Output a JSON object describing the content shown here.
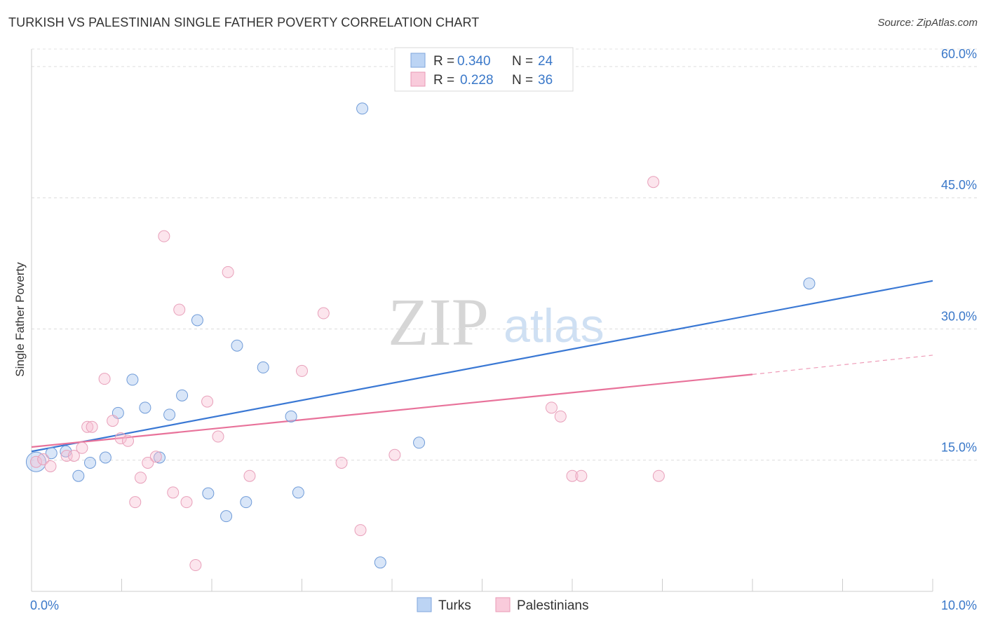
{
  "title": "TURKISH VS PALESTINIAN SINGLE FATHER POVERTY CORRELATION CHART",
  "source": "Source: ZipAtlas.com",
  "watermark": {
    "zip": "ZIP",
    "atlas": "atlas"
  },
  "colors": {
    "turks": "#3a78d4",
    "palestinians": "#e8729a",
    "tick_label": "#3a78c9"
  },
  "legend": {
    "turks": {
      "r_label": "R =",
      "r_value": "0.340",
      "n_label": "N =",
      "n_value": "24"
    },
    "palestinians": {
      "r_label": "R =",
      "r_value": "0.228",
      "n_label": "N =",
      "n_value": "36"
    }
  },
  "chart_data": {
    "type": "scatter",
    "title": "TURKISH VS PALESTINIAN SINGLE FATHER POVERTY CORRELATION CHART",
    "xlabel": "",
    "ylabel": "Single Father Poverty",
    "xlim": [
      0,
      10
    ],
    "ylim": [
      0,
      62
    ],
    "x_tick_labels": [
      "0.0%",
      "10.0%"
    ],
    "y_ticks": [
      15,
      30,
      45,
      60
    ],
    "y_tick_labels": [
      "15.0%",
      "30.0%",
      "45.0%",
      "60.0%"
    ],
    "grid": true,
    "legend_position": "top-center",
    "series": [
      {
        "name": "Turks",
        "color": "#3a78d4",
        "points": [
          [
            0.05,
            14.8
          ],
          [
            0.22,
            15.8
          ],
          [
            0.38,
            16.0
          ],
          [
            0.52,
            13.2
          ],
          [
            0.65,
            14.7
          ],
          [
            0.82,
            15.3
          ],
          [
            0.96,
            20.4
          ],
          [
            1.12,
            24.2
          ],
          [
            1.26,
            21.0
          ],
          [
            1.42,
            15.3
          ],
          [
            1.53,
            20.2
          ],
          [
            1.67,
            22.4
          ],
          [
            1.84,
            31.0
          ],
          [
            1.96,
            11.2
          ],
          [
            2.16,
            8.6
          ],
          [
            2.28,
            28.1
          ],
          [
            2.38,
            10.2
          ],
          [
            2.57,
            25.6
          ],
          [
            2.88,
            20.0
          ],
          [
            2.96,
            11.3
          ],
          [
            3.67,
            55.2
          ],
          [
            3.87,
            3.3
          ],
          [
            4.3,
            17.0
          ],
          [
            8.63,
            35.2
          ]
        ],
        "trend": {
          "x": [
            0.0,
            10.0
          ],
          "y": [
            16.0,
            35.5
          ]
        }
      },
      {
        "name": "Palestinians",
        "color": "#e8729a",
        "points": [
          [
            0.05,
            14.8
          ],
          [
            0.13,
            15.1
          ],
          [
            0.21,
            14.3
          ],
          [
            0.39,
            15.5
          ],
          [
            0.47,
            15.5
          ],
          [
            0.56,
            16.4
          ],
          [
            0.62,
            18.8
          ],
          [
            0.67,
            18.8
          ],
          [
            0.81,
            24.3
          ],
          [
            0.9,
            19.5
          ],
          [
            0.99,
            17.5
          ],
          [
            1.07,
            17.2
          ],
          [
            1.15,
            10.2
          ],
          [
            1.21,
            13.0
          ],
          [
            1.29,
            14.7
          ],
          [
            1.38,
            15.4
          ],
          [
            1.47,
            40.6
          ],
          [
            1.57,
            11.3
          ],
          [
            1.64,
            32.2
          ],
          [
            1.72,
            10.2
          ],
          [
            1.82,
            3.0
          ],
          [
            1.95,
            21.7
          ],
          [
            2.07,
            17.7
          ],
          [
            2.18,
            36.5
          ],
          [
            2.42,
            13.2
          ],
          [
            3.0,
            25.2
          ],
          [
            3.24,
            31.8
          ],
          [
            3.44,
            14.7
          ],
          [
            3.65,
            7.0
          ],
          [
            4.03,
            15.6
          ],
          [
            5.77,
            21.0
          ],
          [
            5.87,
            20.0
          ],
          [
            6.0,
            13.2
          ],
          [
            6.1,
            13.2
          ],
          [
            6.9,
            46.8
          ],
          [
            6.96,
            13.2
          ]
        ],
        "trend": {
          "x": [
            0.0,
            8.0
          ],
          "y": [
            16.5,
            24.8
          ]
        },
        "trend_extension": {
          "x": [
            8.0,
            10.0
          ],
          "y": [
            24.8,
            27.0
          ]
        }
      }
    ]
  },
  "bottom_legend": {
    "turks": "Turks",
    "palestinians": "Palestinians"
  }
}
